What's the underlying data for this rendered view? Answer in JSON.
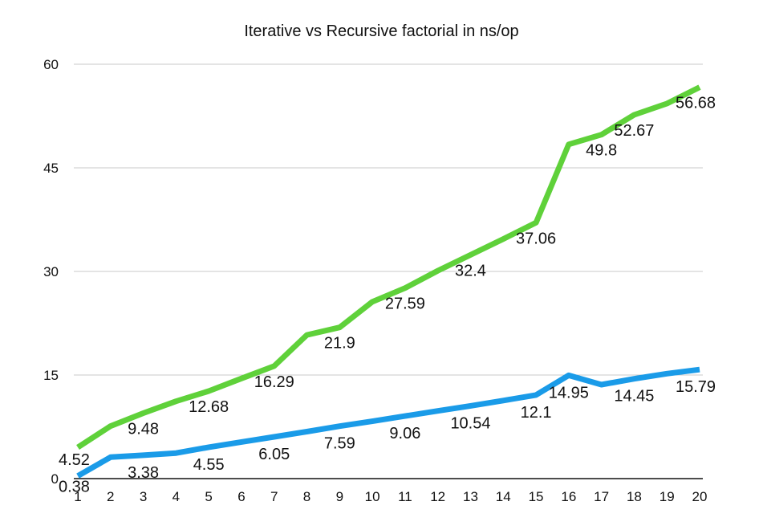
{
  "chart_data": {
    "type": "line",
    "title": "Iterative vs Recursive factorial in ns/op",
    "xlabel": "",
    "ylabel": "",
    "x": [
      1,
      2,
      3,
      4,
      5,
      6,
      7,
      8,
      9,
      10,
      11,
      12,
      13,
      14,
      15,
      16,
      17,
      18,
      19,
      20
    ],
    "ylim": [
      0,
      60
    ],
    "yticks": [
      0,
      15,
      30,
      45,
      60
    ],
    "grid": true,
    "legend": "none",
    "series": [
      {
        "color": "#5fd13a",
        "values": [
          4.52,
          7.6,
          9.48,
          11.2,
          12.68,
          14.5,
          16.29,
          20.8,
          21.9,
          25.6,
          27.59,
          30.1,
          32.4,
          34.7,
          37.06,
          48.4,
          49.8,
          52.67,
          54.3,
          56.68
        ],
        "labeled_points": [
          {
            "x": 1,
            "label": "4.52"
          },
          {
            "x": 3,
            "label": "9.48"
          },
          {
            "x": 5,
            "label": "12.68"
          },
          {
            "x": 7,
            "label": "16.29"
          },
          {
            "x": 9,
            "label": "21.9"
          },
          {
            "x": 11,
            "label": "27.59"
          },
          {
            "x": 13,
            "label": "32.4"
          },
          {
            "x": 15,
            "label": "37.06"
          },
          {
            "x": 17,
            "label": "49.8"
          },
          {
            "x": 18,
            "label": "52.67"
          },
          {
            "x": 20,
            "label": "56.68"
          }
        ]
      },
      {
        "color": "#1a9be8",
        "values": [
          0.38,
          3.1,
          3.38,
          3.7,
          4.55,
          5.3,
          6.05,
          6.8,
          7.59,
          8.3,
          9.06,
          9.8,
          10.54,
          11.3,
          12.1,
          14.95,
          13.6,
          14.45,
          15.2,
          15.79
        ],
        "labeled_points": [
          {
            "x": 1,
            "label": "0.38"
          },
          {
            "x": 3,
            "label": "3.38"
          },
          {
            "x": 5,
            "label": "4.55"
          },
          {
            "x": 7,
            "label": "6.05"
          },
          {
            "x": 9,
            "label": "7.59"
          },
          {
            "x": 11,
            "label": "9.06"
          },
          {
            "x": 13,
            "label": "10.54"
          },
          {
            "x": 15,
            "label": "12.1"
          },
          {
            "x": 16,
            "label": "14.95"
          },
          {
            "x": 18,
            "label": "14.45"
          },
          {
            "x": 20,
            "label": "15.79"
          }
        ]
      }
    ]
  }
}
